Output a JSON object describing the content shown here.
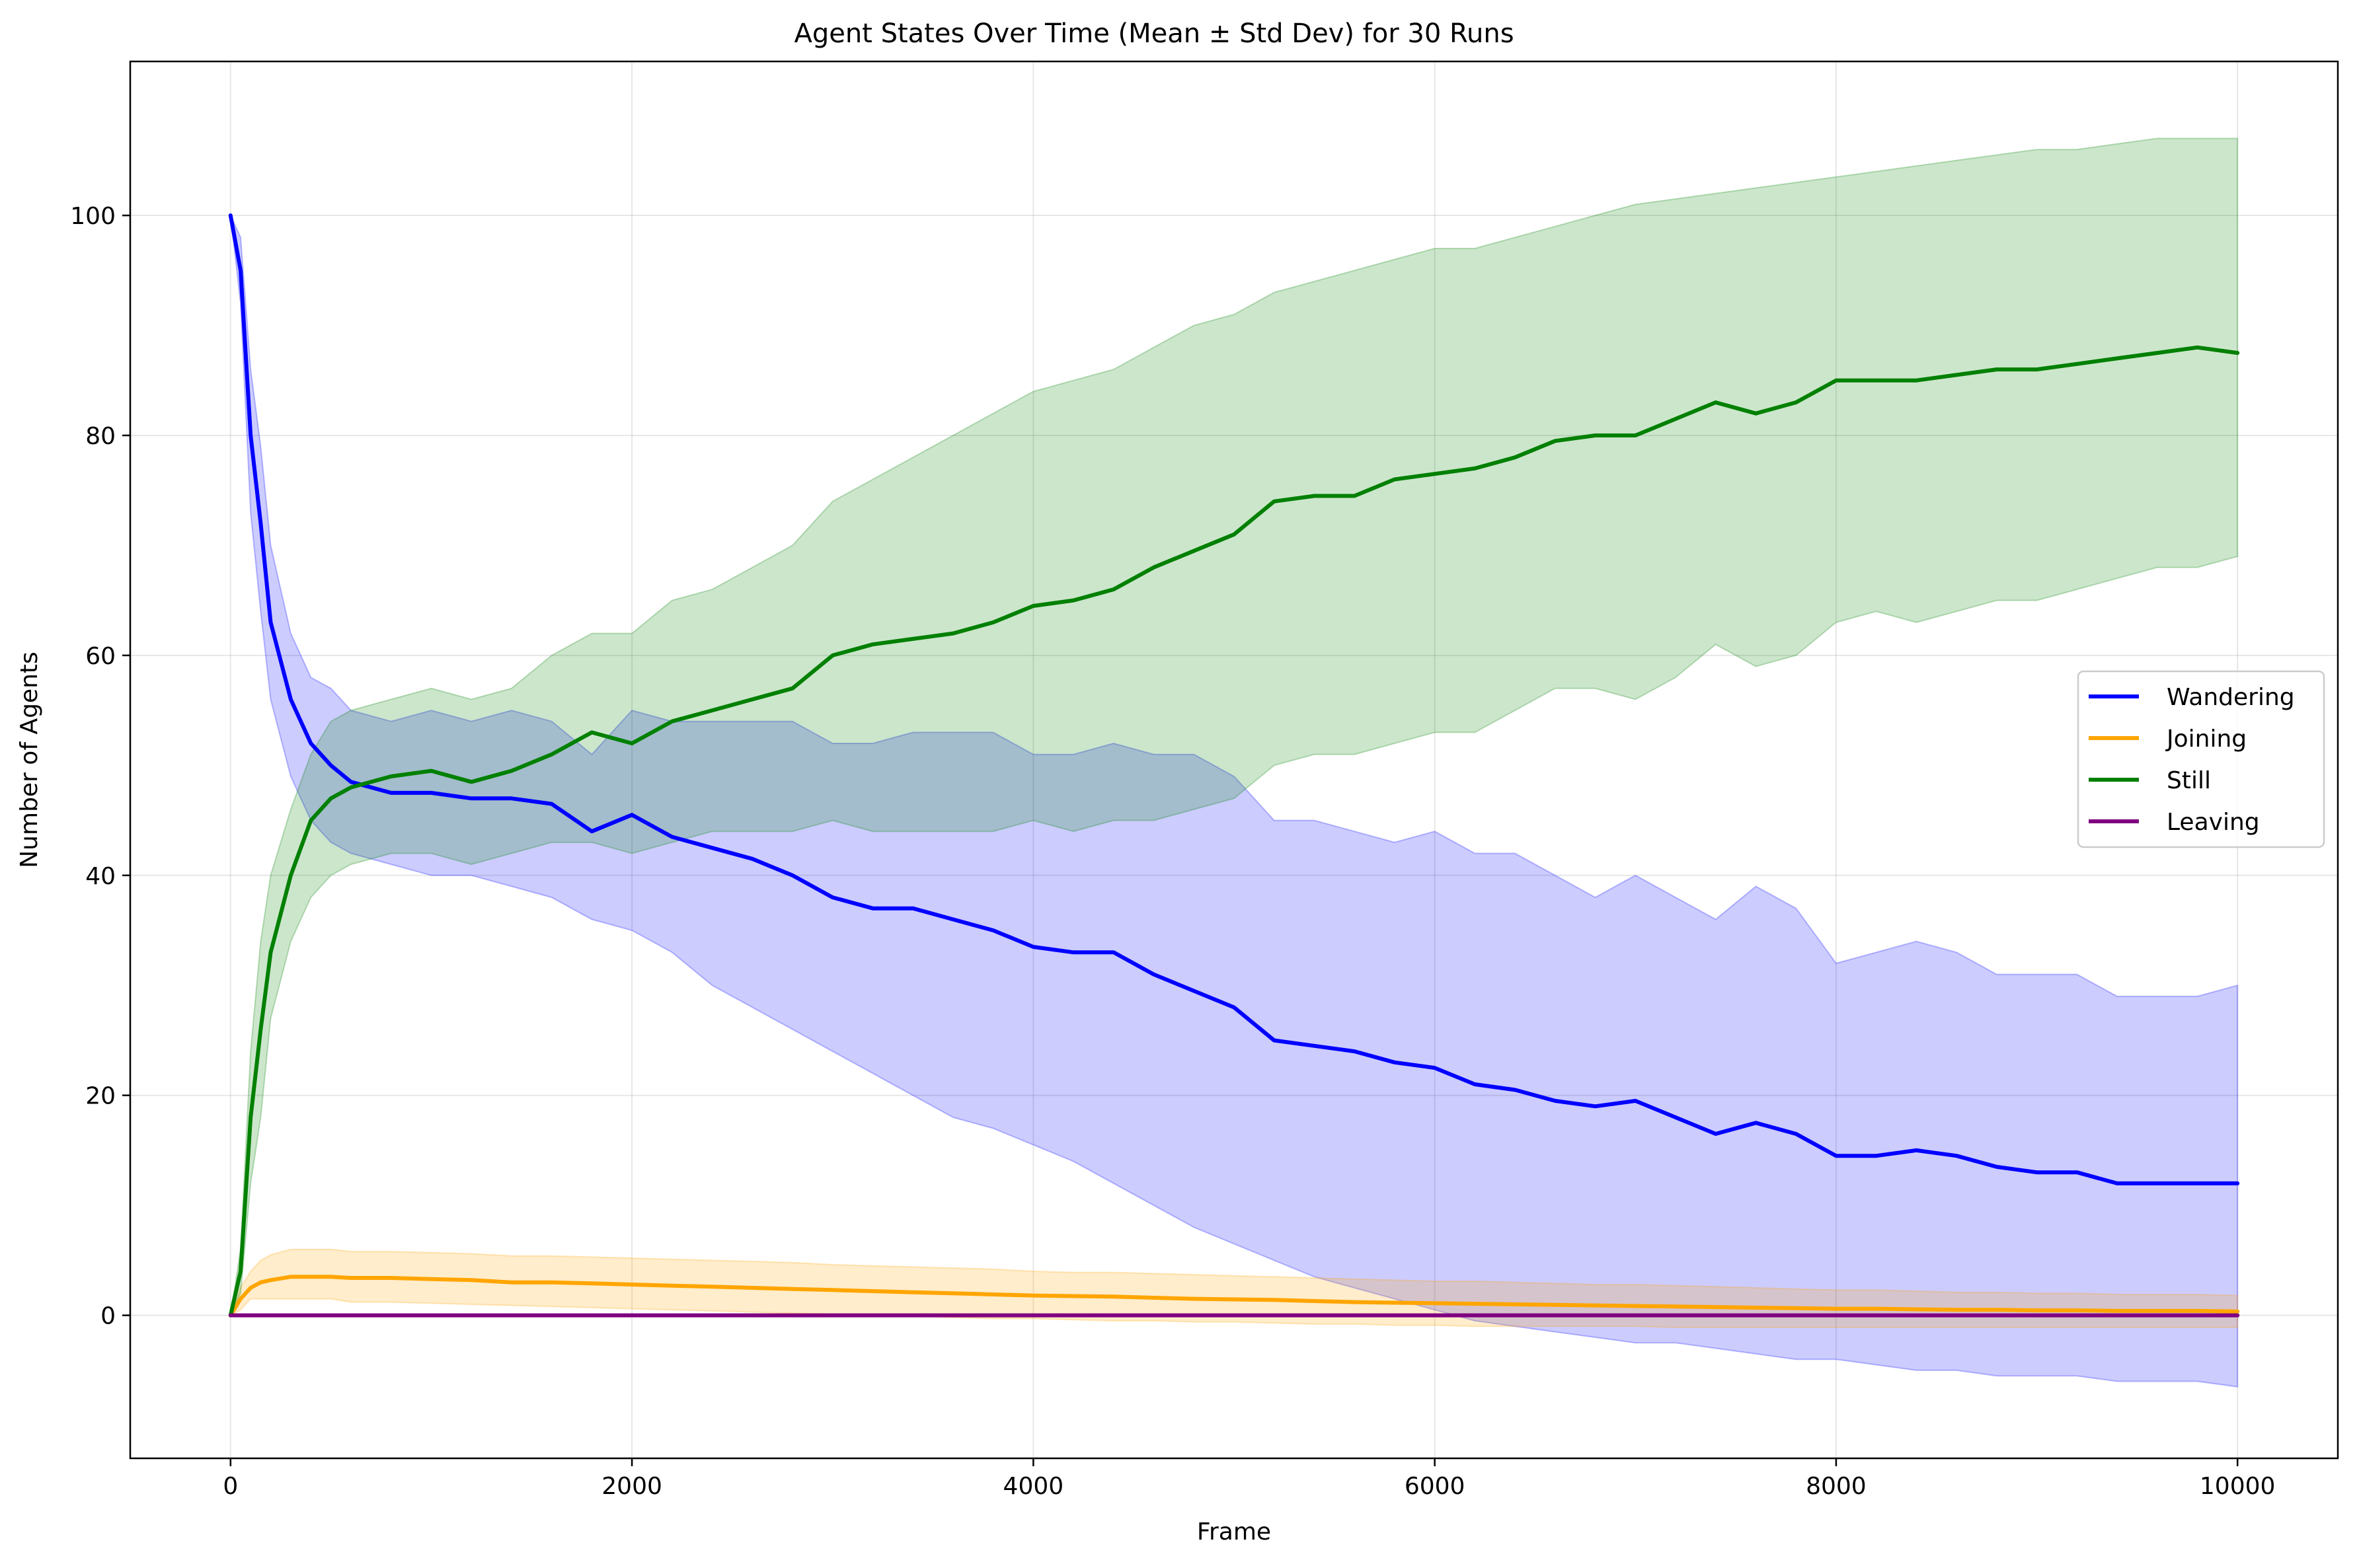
{
  "chart_data": {
    "type": "line",
    "title": "Agent States Over Time (Mean ± Std Dev) for 30 Runs",
    "xlabel": "Frame",
    "ylabel": "Number of Agents",
    "xlim": [
      -500,
      10500
    ],
    "ylim": [
      -13,
      114
    ],
    "xticks": [
      0,
      2000,
      4000,
      6000,
      8000,
      10000
    ],
    "yticks": [
      0,
      20,
      40,
      60,
      80,
      100
    ],
    "grid": true,
    "legend_position": "center-right",
    "x": [
      0,
      50,
      100,
      150,
      200,
      300,
      400,
      500,
      600,
      800,
      1000,
      1200,
      1400,
      1600,
      1800,
      2000,
      2200,
      2400,
      2600,
      2800,
      3000,
      3200,
      3400,
      3600,
      3800,
      4000,
      4200,
      4400,
      4600,
      4800,
      5000,
      5200,
      5400,
      5600,
      5800,
      6000,
      6200,
      6400,
      6600,
      6800,
      7000,
      7200,
      7400,
      7600,
      7800,
      8000,
      8200,
      8400,
      8600,
      8800,
      9000,
      9200,
      9400,
      9600,
      9800,
      10000
    ],
    "series": [
      {
        "name": "Wandering",
        "color": "#0000ff",
        "band_color": "#0000ff",
        "mean": [
          100,
          95,
          80,
          72,
          63,
          56,
          52,
          50,
          48.5,
          47.5,
          47.5,
          47,
          47,
          46.5,
          44,
          45.5,
          43.5,
          42.5,
          41.5,
          40,
          38,
          37,
          37,
          36,
          35,
          33.5,
          33,
          33,
          31,
          29.5,
          28,
          25,
          24.5,
          24,
          23,
          22.5,
          21,
          20.5,
          19.5,
          19,
          19.5,
          18,
          16.5,
          17.5,
          16.5,
          14.5,
          14.5,
          15,
          14.5,
          13.5,
          13,
          13,
          12,
          12,
          12,
          12
        ],
        "lower": [
          100,
          92,
          73,
          64,
          56,
          49,
          45,
          43,
          42,
          41,
          40,
          40,
          39,
          38,
          36,
          35,
          33,
          30,
          28,
          26,
          24,
          22,
          20,
          18,
          17,
          15.5,
          14,
          12,
          10,
          8,
          6.5,
          5,
          3.5,
          2.5,
          1.5,
          0.5,
          -0.5,
          -1,
          -1.5,
          -2,
          -2.5,
          -2.5,
          -3,
          -3.5,
          -4,
          -4,
          -4.5,
          -5,
          -5,
          -5.5,
          -5.5,
          -5.5,
          -6,
          -6,
          -6,
          -6.5
        ],
        "upper": [
          100,
          98,
          86,
          79,
          70,
          62,
          58,
          57,
          55,
          54,
          55,
          54,
          55,
          54,
          51,
          55,
          54,
          54,
          54,
          54,
          52,
          52,
          53,
          53,
          53,
          51,
          51,
          52,
          51,
          51,
          49,
          45,
          45,
          44,
          43,
          44,
          42,
          42,
          40,
          38,
          40,
          38,
          36,
          39,
          37,
          32,
          33,
          34,
          33,
          31,
          31,
          31,
          29,
          29,
          29,
          30
        ]
      },
      {
        "name": "Joining",
        "color": "#ffa500",
        "band_color": "#ffa500",
        "mean": [
          0,
          1.5,
          2.5,
          3,
          3.2,
          3.5,
          3.5,
          3.5,
          3.4,
          3.4,
          3.3,
          3.2,
          3,
          3,
          2.9,
          2.8,
          2.7,
          2.6,
          2.5,
          2.4,
          2.3,
          2.2,
          2.1,
          2.0,
          1.9,
          1.8,
          1.75,
          1.7,
          1.6,
          1.5,
          1.45,
          1.4,
          1.3,
          1.2,
          1.15,
          1.1,
          1.05,
          1.0,
          0.95,
          0.9,
          0.85,
          0.8,
          0.75,
          0.7,
          0.65,
          0.6,
          0.6,
          0.55,
          0.5,
          0.5,
          0.45,
          0.45,
          0.4,
          0.4,
          0.4,
          0.35
        ],
        "lower": [
          0,
          0.5,
          1.5,
          1.5,
          1.5,
          1.5,
          1.5,
          1.5,
          1.2,
          1.2,
          1.1,
          1.0,
          0.9,
          0.8,
          0.7,
          0.6,
          0.5,
          0.4,
          0.3,
          0.2,
          0.1,
          0.0,
          -0.1,
          -0.2,
          -0.3,
          -0.3,
          -0.4,
          -0.5,
          -0.5,
          -0.6,
          -0.6,
          -0.7,
          -0.8,
          -0.8,
          -0.9,
          -0.9,
          -1.0,
          -1.0,
          -1.0,
          -1.0,
          -1.0,
          -1.1,
          -1.1,
          -1.1,
          -1.1,
          -1.1,
          -1.1,
          -1.1,
          -1.1,
          -1.1,
          -1.1,
          -1.1,
          -1.1,
          -1.1,
          -1.1,
          -1.1
        ],
        "upper": [
          0,
          2.5,
          4,
          5,
          5.5,
          6,
          6,
          6,
          5.8,
          5.8,
          5.7,
          5.6,
          5.4,
          5.4,
          5.3,
          5.2,
          5.1,
          5,
          4.9,
          4.8,
          4.6,
          4.5,
          4.4,
          4.3,
          4.2,
          4.0,
          3.9,
          3.9,
          3.8,
          3.7,
          3.6,
          3.5,
          3.4,
          3.3,
          3.2,
          3.1,
          3.1,
          3.0,
          2.9,
          2.8,
          2.8,
          2.7,
          2.6,
          2.5,
          2.4,
          2.3,
          2.3,
          2.2,
          2.1,
          2.1,
          2.0,
          2.0,
          1.9,
          1.9,
          1.9,
          1.8
        ]
      },
      {
        "name": "Still",
        "color": "#008000",
        "band_color": "#008000",
        "mean": [
          0,
          4,
          18,
          26,
          33,
          40,
          45,
          47,
          48,
          49,
          49.5,
          48.5,
          49.5,
          51,
          53,
          52,
          54,
          55,
          56,
          57,
          60,
          61,
          61.5,
          62,
          63,
          64.5,
          65,
          66,
          68,
          69.5,
          71,
          74,
          74.5,
          74.5,
          76,
          76.5,
          77,
          78,
          79.5,
          80,
          80,
          81.5,
          83,
          82,
          83,
          85,
          85,
          85,
          85.5,
          86,
          86,
          86.5,
          87,
          87.5,
          88,
          87.5
        ],
        "lower": [
          0,
          2,
          12,
          18,
          27,
          34,
          38,
          40,
          41,
          42,
          42,
          41,
          42,
          43,
          43,
          42,
          43,
          44,
          44,
          44,
          45,
          44,
          44,
          44,
          44,
          45,
          44,
          45,
          45,
          46,
          47,
          50,
          51,
          51,
          52,
          53,
          53,
          55,
          57,
          57,
          56,
          58,
          61,
          59,
          60,
          63,
          64,
          63,
          64,
          65,
          65,
          66,
          67,
          68,
          68,
          69
        ],
        "upper": [
          0,
          6,
          24,
          34,
          40,
          46,
          51,
          54,
          55,
          56,
          57,
          56,
          57,
          60,
          62,
          62,
          65,
          66,
          68,
          70,
          74,
          76,
          78,
          80,
          82,
          84,
          85,
          86,
          88,
          90,
          91,
          93,
          94,
          95,
          96,
          97,
          97,
          98,
          99,
          100,
          101,
          101.5,
          102,
          102.5,
          103,
          103.5,
          104,
          104.5,
          105,
          105.5,
          106,
          106,
          106.5,
          107,
          107,
          107
        ]
      },
      {
        "name": "Leaving",
        "color": "#800080",
        "band_color": "#800080",
        "mean": [
          0,
          0,
          0,
          0,
          0,
          0,
          0,
          0,
          0,
          0,
          0,
          0,
          0,
          0,
          0,
          0,
          0,
          0,
          0,
          0,
          0,
          0,
          0,
          0,
          0,
          0,
          0,
          0,
          0,
          0,
          0,
          0,
          0,
          0,
          0,
          0,
          0,
          0,
          0,
          0,
          0,
          0,
          0,
          0,
          0,
          0,
          0,
          0,
          0,
          0,
          0,
          0,
          0,
          0,
          0,
          0
        ],
        "lower": [
          0,
          0,
          0,
          0,
          0,
          0,
          0,
          0,
          0,
          0,
          0,
          0,
          0,
          0,
          0,
          0,
          0,
          0,
          0,
          0,
          0,
          0,
          0,
          0,
          0,
          0,
          0,
          0,
          0,
          0,
          0,
          0,
          0,
          0,
          0,
          0,
          0,
          0,
          0,
          0,
          0,
          0,
          0,
          0,
          0,
          0,
          0,
          0,
          0,
          0,
          0,
          0,
          0,
          0,
          0,
          0
        ],
        "upper": [
          0,
          0,
          0,
          0,
          0,
          0,
          0,
          0,
          0,
          0,
          0,
          0,
          0,
          0,
          0,
          0,
          0,
          0,
          0,
          0,
          0,
          0,
          0,
          0,
          0,
          0,
          0,
          0,
          0,
          0,
          0,
          0,
          0,
          0,
          0,
          0,
          0,
          0,
          0,
          0,
          0,
          0,
          0,
          0,
          0,
          0,
          0,
          0,
          0,
          0,
          0,
          0,
          0,
          0,
          0,
          0
        ]
      }
    ]
  }
}
